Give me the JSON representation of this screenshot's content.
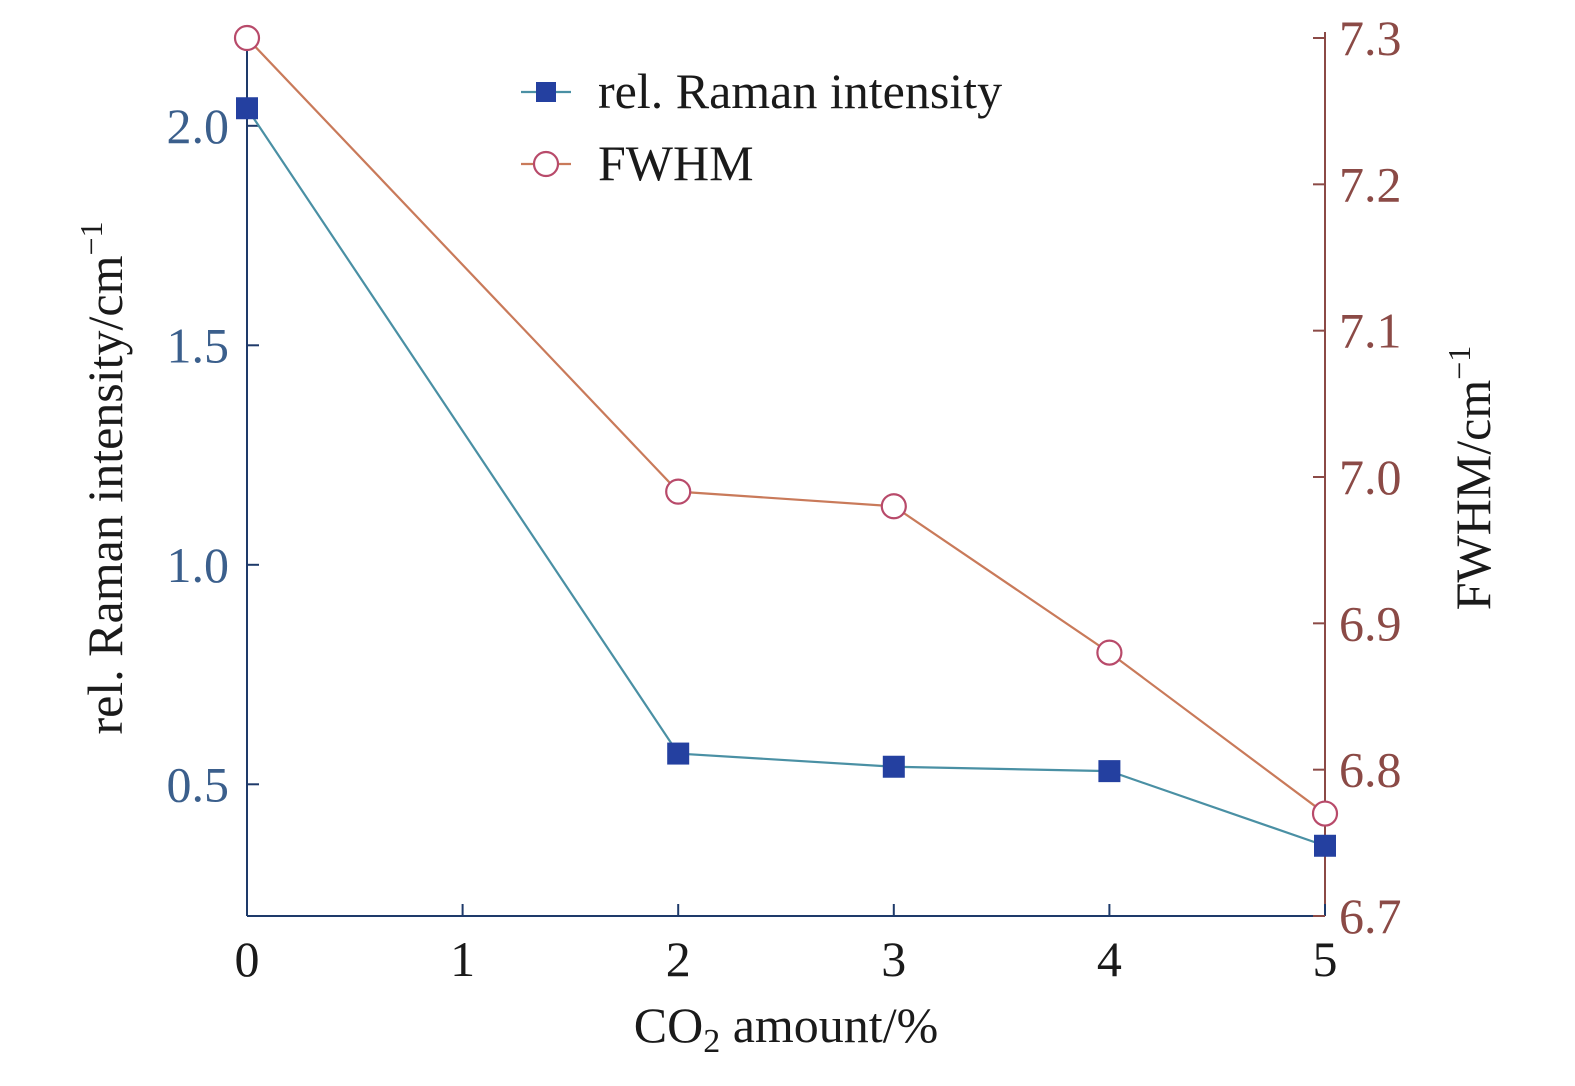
{
  "chart_data": {
    "type": "line",
    "x": [
      0,
      2,
      3,
      4,
      5
    ],
    "xlabel_parts": [
      "CO",
      "2",
      " amount/%"
    ],
    "xlim": [
      0,
      5
    ],
    "xticks": [
      "0",
      "1",
      "2",
      "3",
      "4",
      "5"
    ],
    "ylabel_left": "rel. Raman intensity/cm",
    "ylabel_left_sup": "−1",
    "ylim_left": [
      0.2,
      2.2
    ],
    "yticks_left": [
      "0.5",
      "1.0",
      "1.5",
      "2.0"
    ],
    "ylabel_right": "FWHM/cm",
    "ylabel_right_sup": "−1",
    "ylim_right": [
      6.7,
      7.3
    ],
    "yticks_right": [
      "6.7",
      "6.8",
      "6.9",
      "7.0",
      "7.1",
      "7.2",
      "7.3"
    ],
    "series": [
      {
        "name": "rel. Raman intensity",
        "axis": "left",
        "marker": "filled-square",
        "values": [
          2.04,
          0.57,
          0.54,
          0.53,
          0.36
        ]
      },
      {
        "name": "FWHM",
        "axis": "right",
        "marker": "open-circle",
        "values": [
          7.3,
          6.99,
          6.98,
          6.88,
          6.77
        ]
      }
    ],
    "legend_position": "top-center",
    "grid": false,
    "colors": {
      "left_axis": "#3b5f8c",
      "right_axis": "#8b4a46",
      "raman_line": "#4a90a4",
      "raman_marker": "#2440a0",
      "fwhm_line": "#c97a5a",
      "fwhm_marker": "#b84a6a",
      "axis_frame": "#1e3a6a",
      "text": "#1a1a1a"
    }
  }
}
